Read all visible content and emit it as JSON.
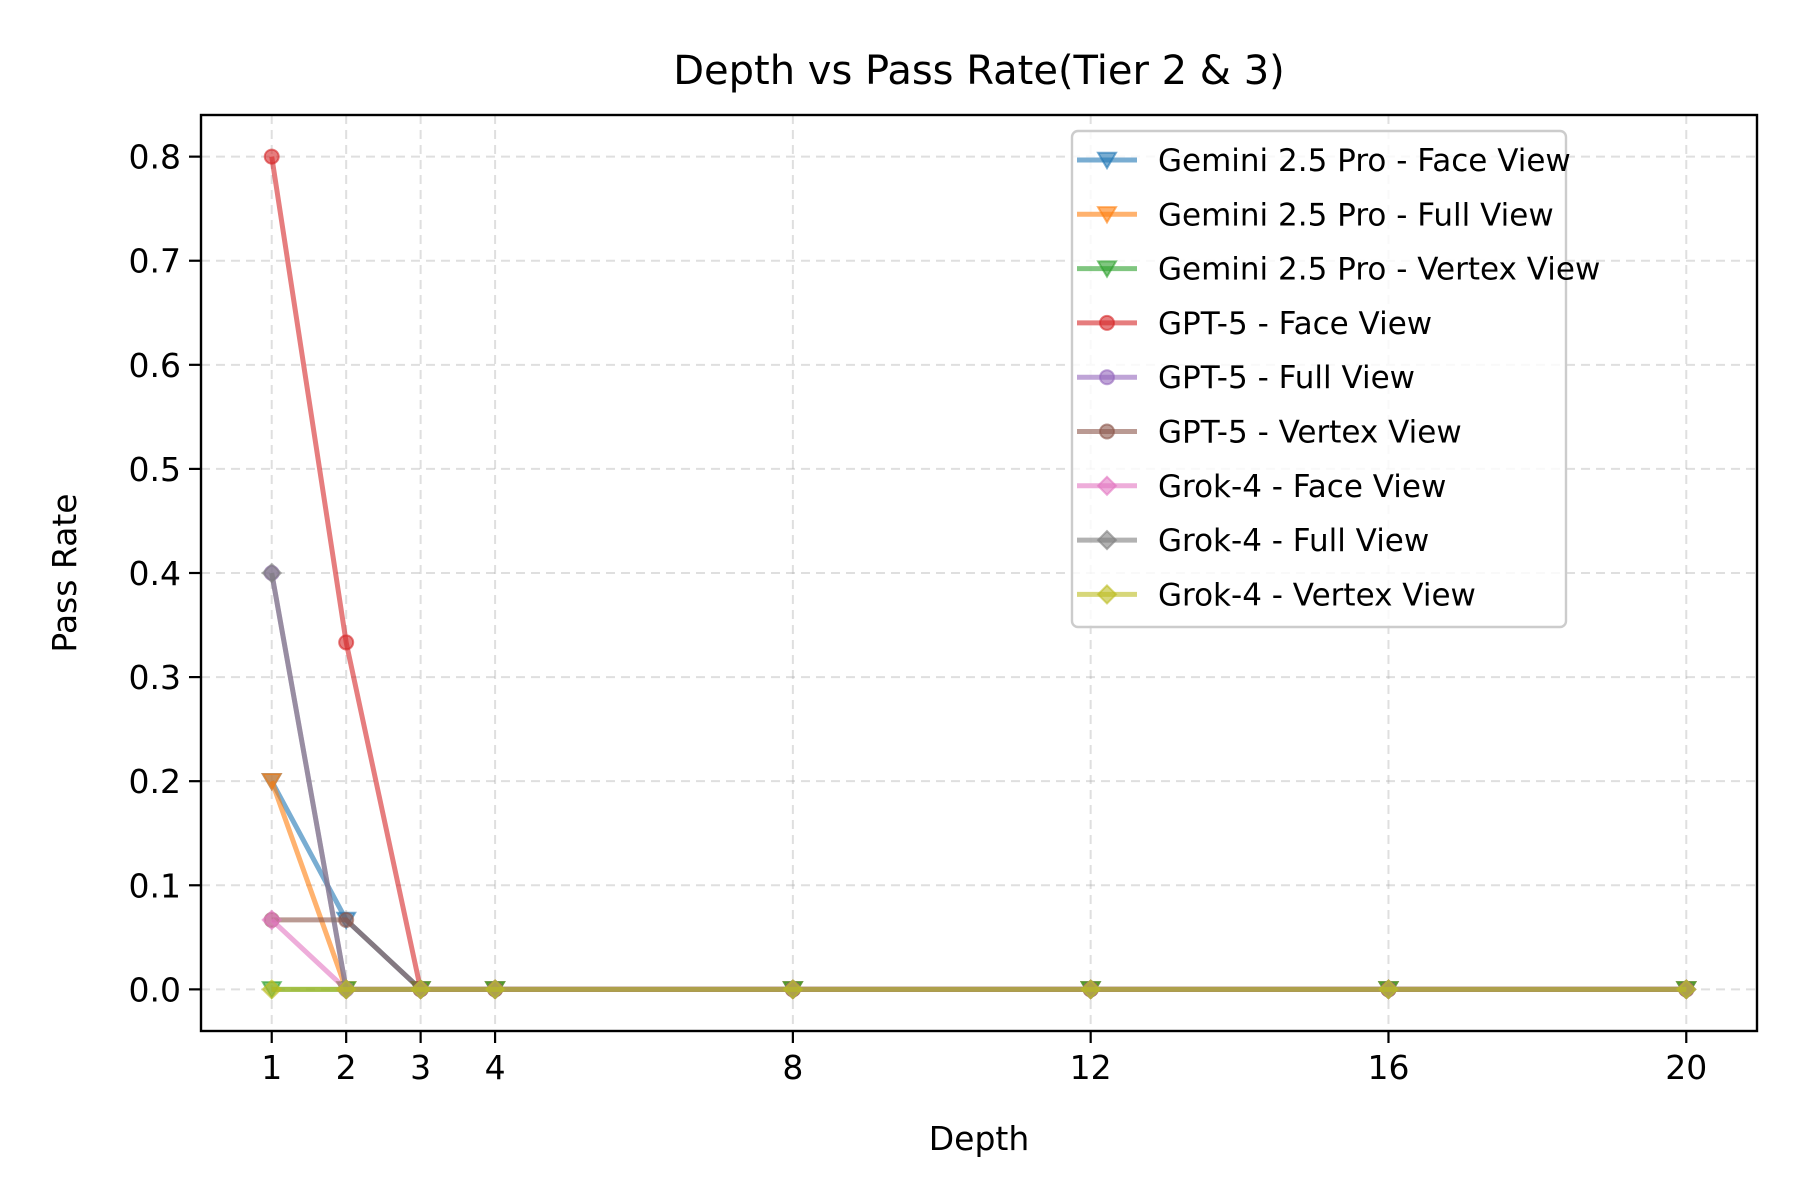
{
  "chart_data": {
    "type": "line",
    "title": "Depth vs Pass Rate(Tier 2 & 3)",
    "xlabel": "Depth",
    "ylabel": "Pass Rate",
    "x": [
      1,
      2,
      3,
      4,
      8,
      12,
      16,
      20
    ],
    "xticks": [
      1,
      2,
      3,
      4,
      8,
      12,
      16,
      20
    ],
    "yticks": [
      0.0,
      0.1,
      0.2,
      0.3,
      0.4,
      0.5,
      0.6,
      0.7,
      0.8
    ],
    "xlim": [
      0.05,
      20.95
    ],
    "ylim": [
      -0.04,
      0.84
    ],
    "grid": true,
    "legend_position": "top-right",
    "series": [
      {
        "name": "Gemini 2.5 Pro - Face View",
        "color": "#1f77b4",
        "marker": "triangle-down",
        "values": [
          0.2,
          0.0667,
          0,
          0,
          0,
          0,
          0,
          0
        ]
      },
      {
        "name": "Gemini 2.5 Pro - Full View",
        "color": "#ff7f0e",
        "marker": "triangle-down",
        "values": [
          0.2,
          0,
          0,
          0,
          0,
          0,
          0,
          0
        ]
      },
      {
        "name": "Gemini 2.5 Pro - Vertex View",
        "color": "#2ca02c",
        "marker": "triangle-down",
        "values": [
          0,
          0,
          0,
          0,
          0,
          0,
          0,
          0
        ]
      },
      {
        "name": "GPT-5 - Face View",
        "color": "#d62728",
        "marker": "circle",
        "values": [
          0.8,
          0.3333,
          0,
          0,
          0,
          0,
          0,
          0
        ]
      },
      {
        "name": "GPT-5 - Full View",
        "color": "#9467bd",
        "marker": "circle",
        "values": [
          0.4,
          0,
          0,
          0,
          0,
          0,
          0,
          0
        ]
      },
      {
        "name": "GPT-5 - Vertex View",
        "color": "#8c564b",
        "marker": "circle",
        "values": [
          0.0667,
          0.0667,
          0,
          0,
          0,
          0,
          0,
          0
        ]
      },
      {
        "name": "Grok-4 - Face View",
        "color": "#e377c2",
        "marker": "diamond",
        "values": [
          0.0667,
          0,
          0,
          0,
          0,
          0,
          0,
          0
        ]
      },
      {
        "name": "Grok-4 - Full View",
        "color": "#7f7f7f",
        "marker": "diamond",
        "values": [
          0.4,
          0,
          0,
          0,
          0,
          0,
          0,
          0
        ]
      },
      {
        "name": "Grok-4 - Vertex View",
        "color": "#bcbd22",
        "marker": "diamond",
        "values": [
          0,
          0,
          0,
          0,
          0,
          0,
          0,
          0
        ]
      }
    ]
  }
}
